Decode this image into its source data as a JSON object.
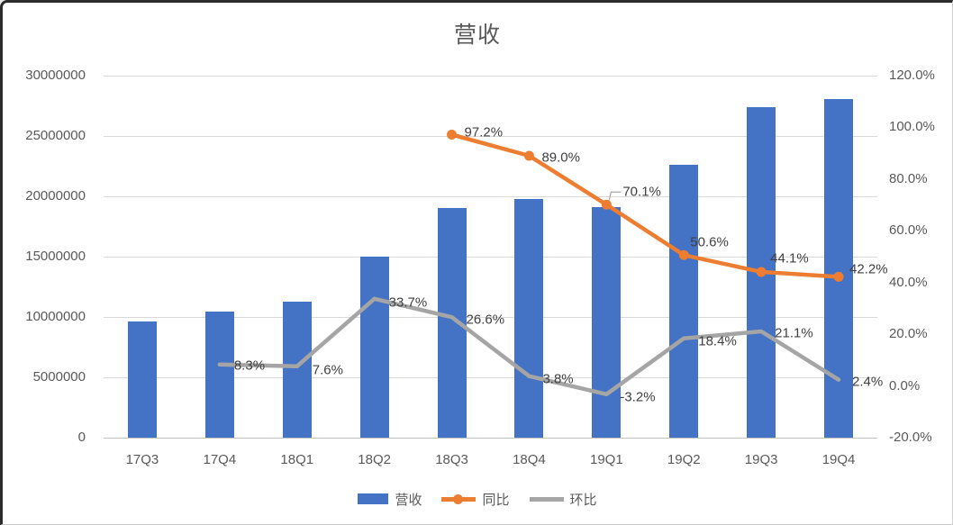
{
  "chart_data": {
    "type": "combo-bar-line",
    "title": "营收",
    "categories": [
      "17Q3",
      "17Q4",
      "18Q1",
      "18Q2",
      "18Q3",
      "18Q4",
      "19Q1",
      "19Q2",
      "19Q3",
      "19Q4"
    ],
    "series": [
      {
        "name": "营收",
        "type": "bar",
        "axis": "left",
        "color": "#4472C4",
        "values": [
          9650000,
          10450000,
          11240000,
          15030000,
          19030000,
          19750000,
          19120000,
          22640000,
          27420000,
          28080000
        ]
      },
      {
        "name": "同比",
        "type": "line",
        "axis": "right",
        "color": "#ED7D31",
        "marker": "circle",
        "values": [
          null,
          null,
          null,
          null,
          97.2,
          89.0,
          70.1,
          50.6,
          44.1,
          42.2
        ],
        "labels": [
          null,
          null,
          null,
          null,
          "97.2%",
          "89.0%",
          "70.1%",
          "50.6%",
          "44.1%",
          "42.2%"
        ]
      },
      {
        "name": "环比",
        "type": "line",
        "axis": "right",
        "color": "#A5A5A5",
        "marker": "none",
        "values": [
          null,
          8.3,
          7.6,
          33.7,
          26.6,
          3.8,
          -3.2,
          18.4,
          21.1,
          2.4
        ],
        "labels": [
          null,
          "8.3%",
          "7.6%",
          "33.7%",
          "26.6%",
          "3.8%",
          "-3.2%",
          "18.4%",
          "21.1%",
          "2.4%"
        ]
      }
    ],
    "left_axis": {
      "min": 0,
      "max": 30000000,
      "step": 5000000,
      "tick_labels": [
        "0",
        "5000000",
        "10000000",
        "15000000",
        "20000000",
        "25000000",
        "30000000"
      ]
    },
    "right_axis": {
      "min": -20,
      "max": 120,
      "step": 20,
      "tick_labels": [
        "-20.0%",
        "0.0%",
        "20.0%",
        "40.0%",
        "60.0%",
        "80.0%",
        "100.0%",
        "120.0%"
      ]
    },
    "grid": true,
    "legend_position": "bottom",
    "legend": [
      "营收",
      "同比",
      "环比"
    ],
    "style": {
      "gridline_color": "#D9D9D9",
      "axis_line_color": "#C2C2C2",
      "axis_text_color": "#595959",
      "data_label_color": "#404040",
      "title_color": "#595959",
      "background": "#FFFFFF"
    }
  }
}
